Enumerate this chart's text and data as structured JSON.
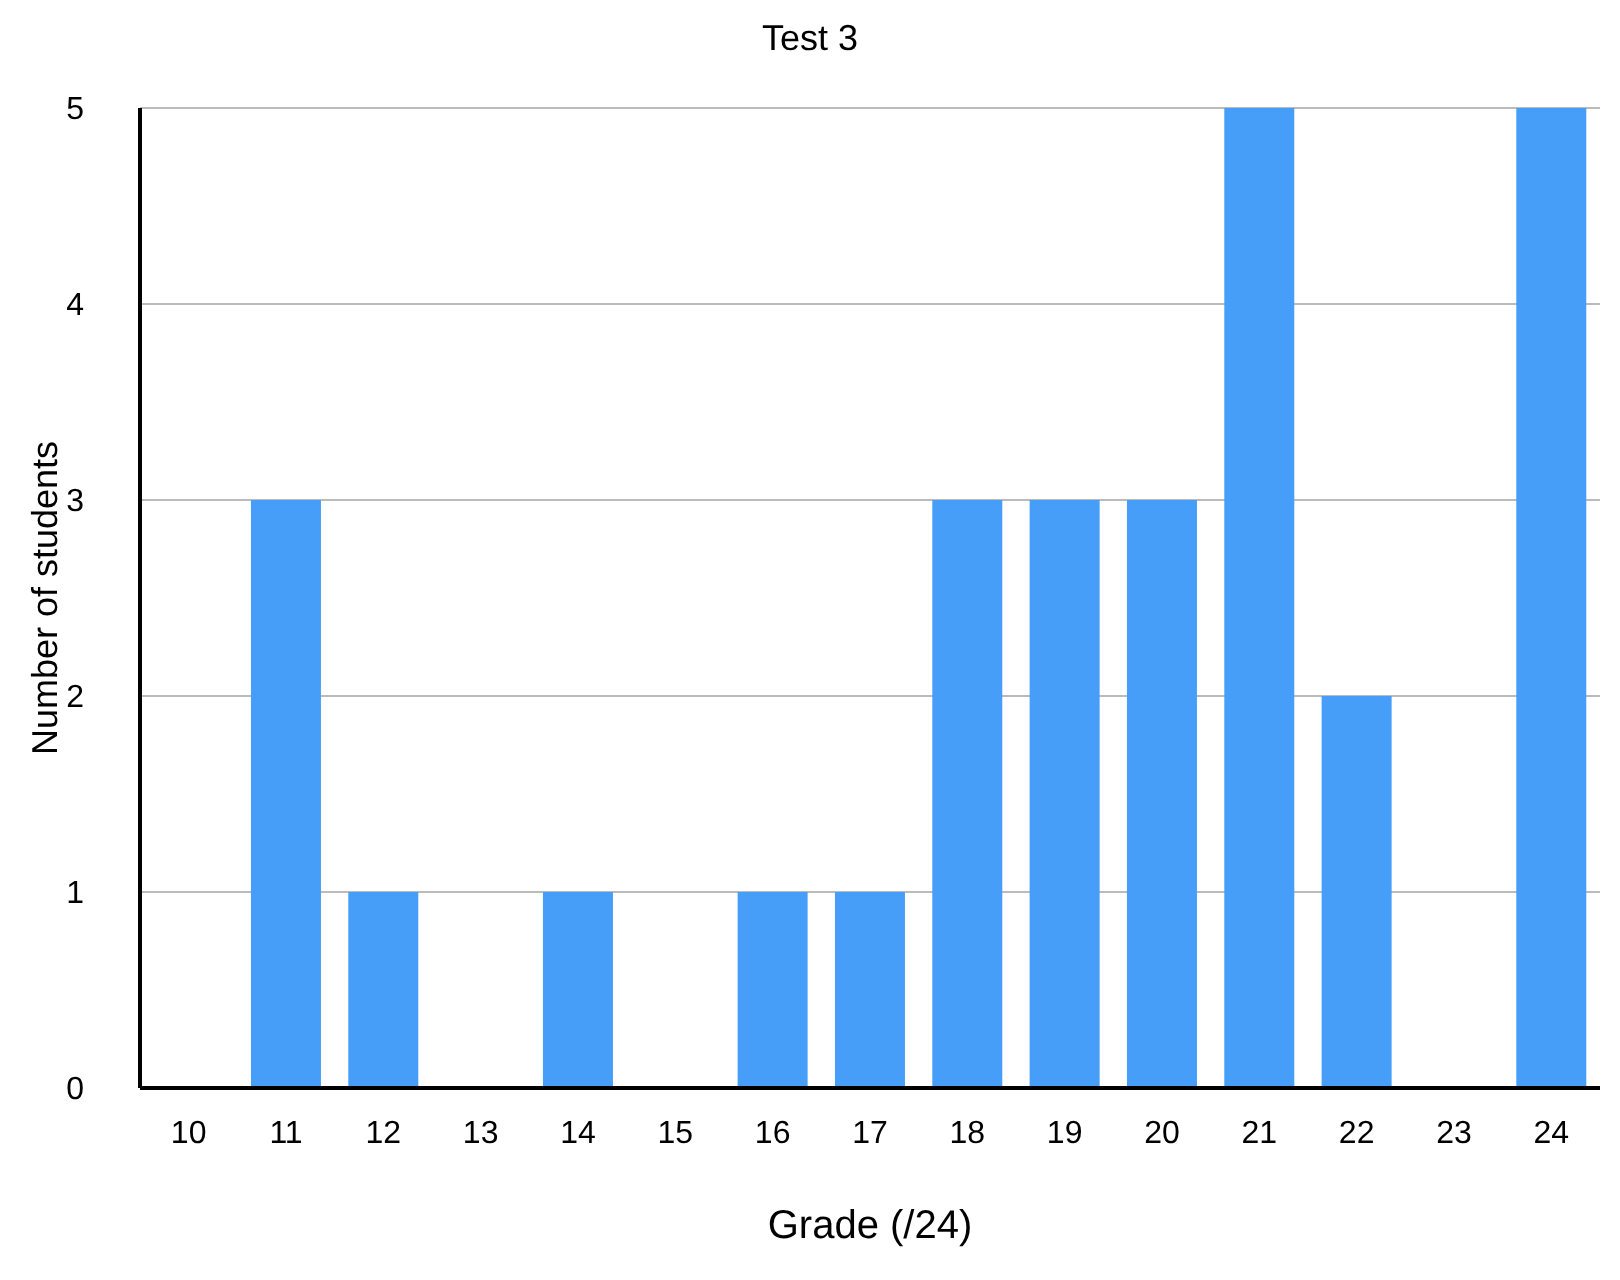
{
  "chart_data": {
    "type": "bar",
    "title": "Test 3",
    "xlabel": "Grade (/24)",
    "ylabel": "Number of students",
    "categories": [
      "10",
      "11",
      "12",
      "13",
      "14",
      "15",
      "16",
      "17",
      "18",
      "19",
      "20",
      "21",
      "22",
      "23",
      "24"
    ],
    "values": [
      0,
      3,
      1,
      0,
      1,
      0,
      1,
      1,
      3,
      3,
      3,
      5,
      2,
      0,
      5
    ],
    "color": "#479ef8",
    "ylim": [
      0,
      5
    ],
    "yticks": [
      0,
      1,
      2,
      3,
      4,
      5
    ],
    "grid": "y",
    "legend": false
  }
}
